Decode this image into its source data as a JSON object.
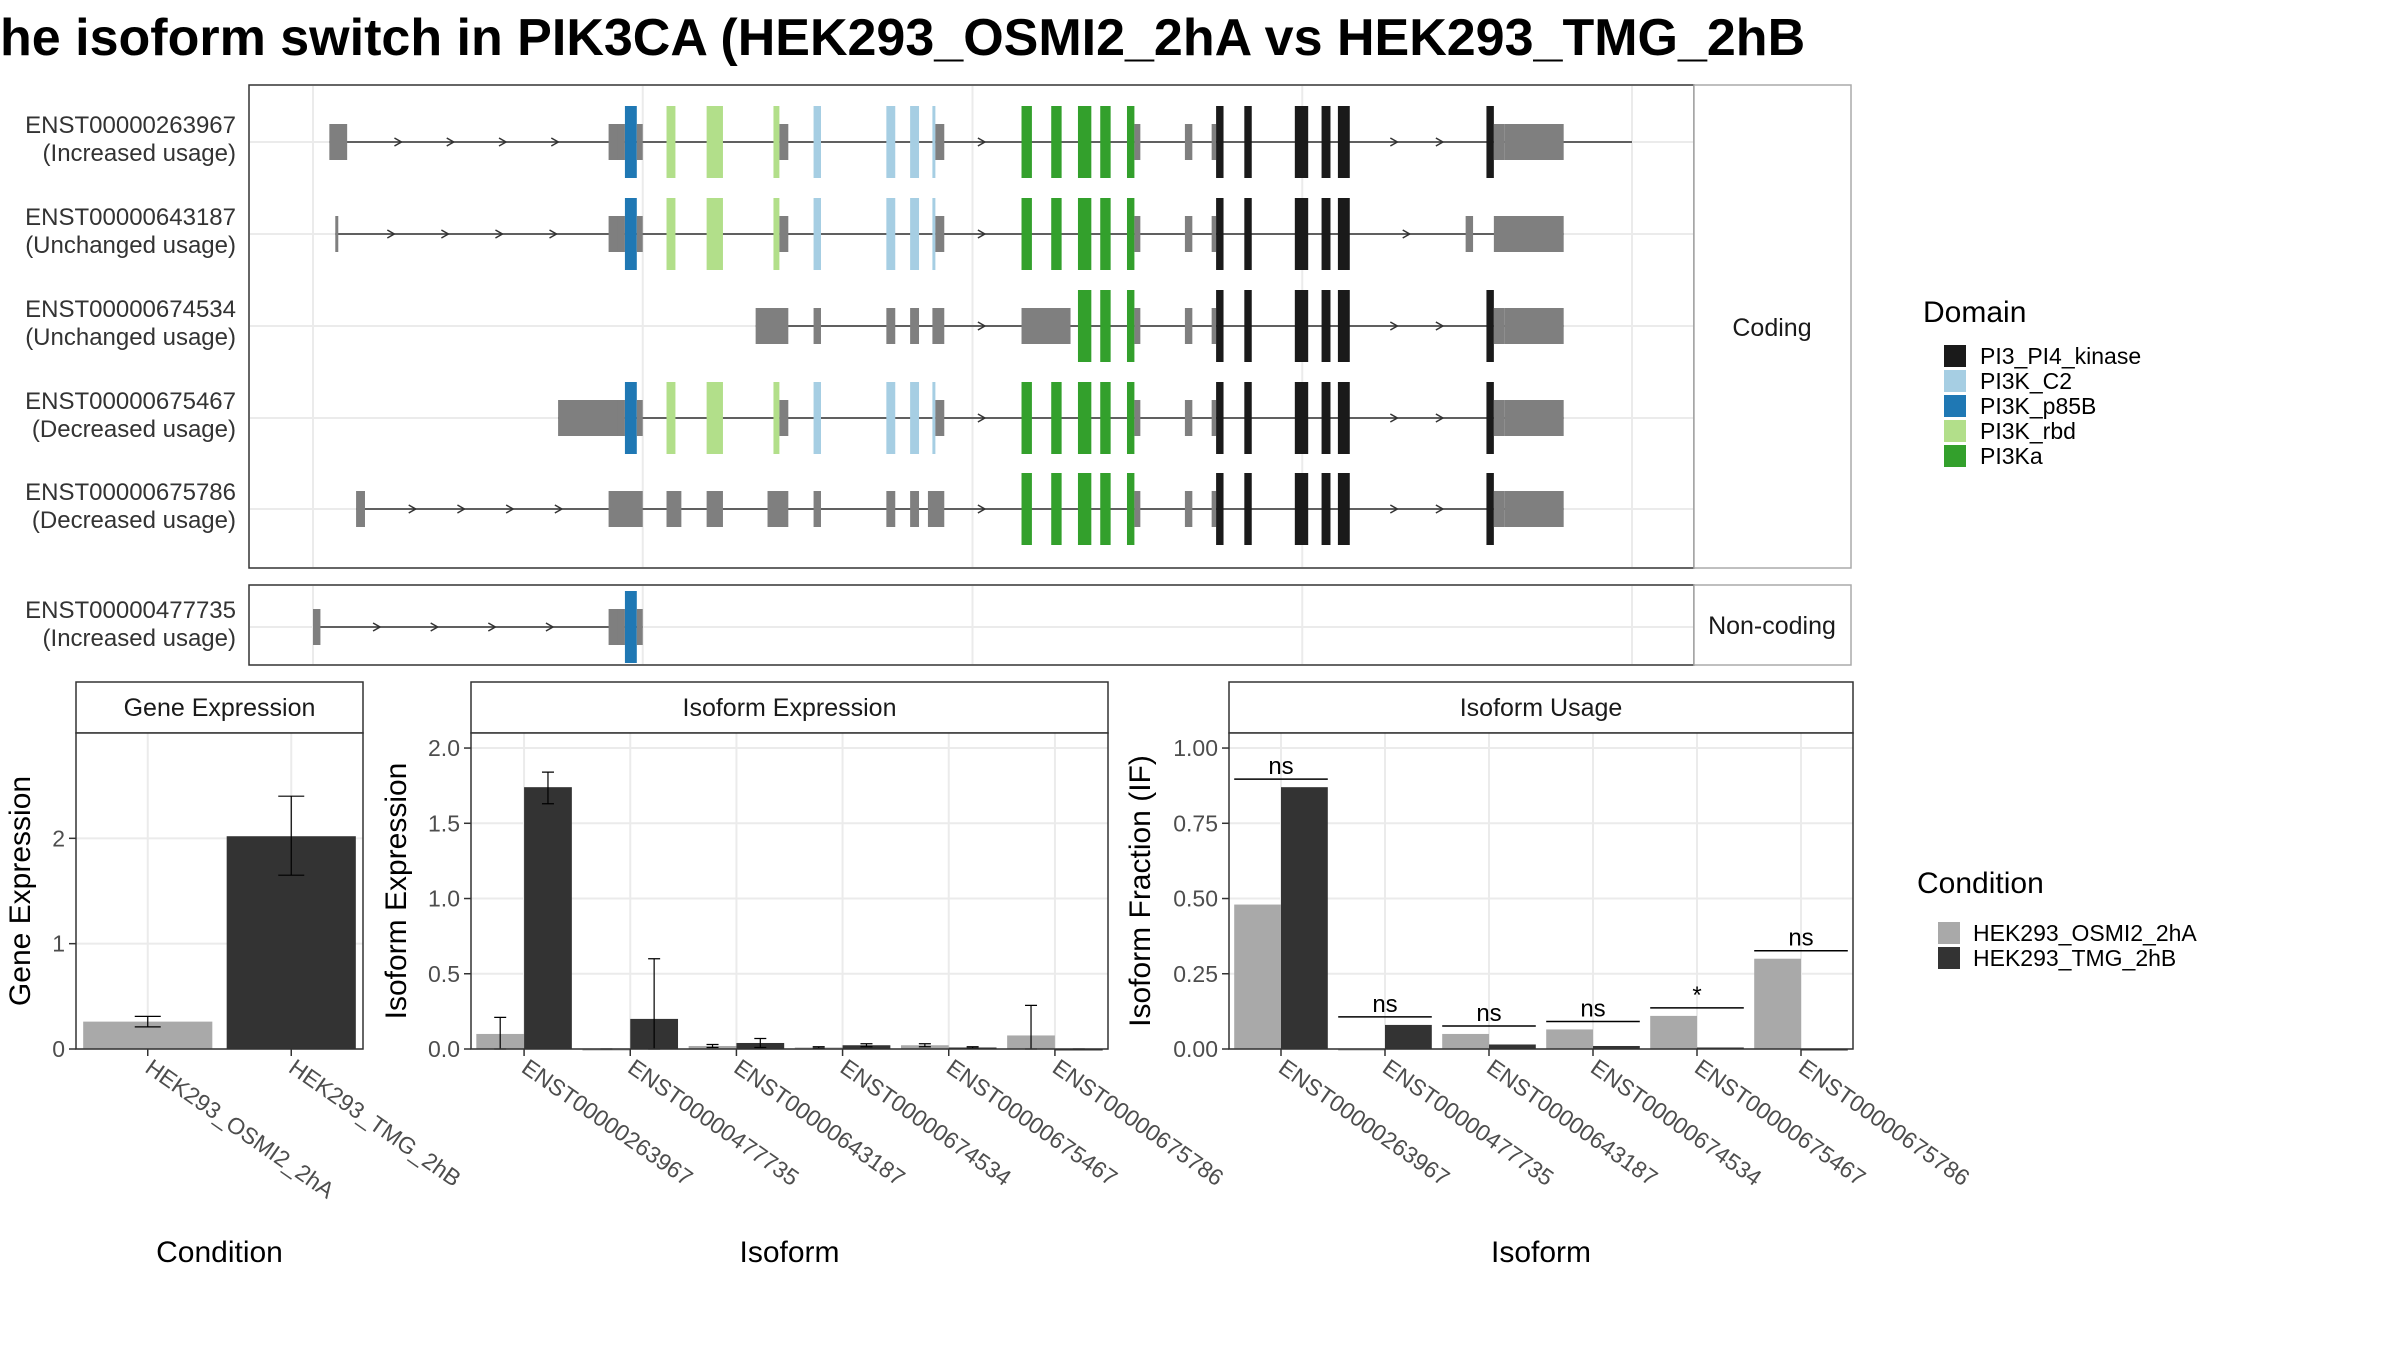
{
  "title": "he isoform switch in PIK3CA (HEK293_OSMI2_2hA vs HEK293_TMG_2hB",
  "colors": {
    "utr": "#7f7f7f",
    "intron": "#333333",
    "grid": "#ebebeb",
    "strip_border": "#aaaaaa",
    "cond_a": "#a9a9a9",
    "cond_b": "#333333",
    "PI3_PI4_kinase": "#1a1a1a",
    "PI3K_C2": "#a6cee3",
    "PI3K_p85B": "#1f78b4",
    "PI3K_rbd": "#b2df8a",
    "PI3Ka": "#33a02c"
  },
  "domain_legend": {
    "title": "Domain",
    "items": [
      {
        "label": "PI3_PI4_kinase",
        "color": "#1a1a1a"
      },
      {
        "label": "PI3K_C2",
        "color": "#a6cee3"
      },
      {
        "label": "PI3K_p85B",
        "color": "#1f78b4"
      },
      {
        "label": "PI3K_rbd",
        "color": "#b2df8a"
      },
      {
        "label": "PI3Ka",
        "color": "#33a02c"
      }
    ]
  },
  "condition_legend": {
    "title": "Condition",
    "items": [
      {
        "label": "HEK293_OSMI2_2hA",
        "color": "#a9a9a9"
      },
      {
        "label": "HEK293_TMG_2hB",
        "color": "#333333"
      }
    ]
  },
  "structure": {
    "coding_strip": "Coding",
    "noncoding_strip": "Non-coding",
    "coding_transcripts": [
      {
        "id": "ENST00000263967",
        "usage": "(Increased usage)",
        "span": [
          11,
          888
        ],
        "exons": [
          {
            "s": 11,
            "e": 23,
            "t": "utr"
          },
          {
            "s": 199,
            "e": 205,
            "t": "utr"
          },
          {
            "s": 205,
            "e": 210,
            "t": "utr"
          },
          {
            "s": 210,
            "e": 218,
            "t": "PI3K_p85B"
          },
          {
            "s": 218,
            "e": 222,
            "t": "utr"
          },
          {
            "s": 238,
            "e": 244,
            "t": "PI3K_rbd"
          },
          {
            "s": 265,
            "e": 276,
            "t": "PI3K_rbd"
          },
          {
            "s": 310,
            "e": 314,
            "t": "PI3K_rbd"
          },
          {
            "s": 314,
            "e": 320,
            "t": "utr"
          },
          {
            "s": 337,
            "e": 342,
            "t": "PI3K_C2"
          },
          {
            "s": 386,
            "e": 392,
            "t": "PI3K_C2"
          },
          {
            "s": 402,
            "e": 408,
            "t": "PI3K_C2"
          },
          {
            "s": 417,
            "e": 419,
            "t": "PI3K_C2"
          },
          {
            "s": 419,
            "e": 425,
            "t": "utr"
          },
          {
            "s": 477,
            "e": 484,
            "t": "PI3Ka"
          },
          {
            "s": 497,
            "e": 504,
            "t": "PI3Ka"
          },
          {
            "s": 515,
            "e": 524,
            "t": "PI3Ka"
          },
          {
            "s": 530,
            "e": 537,
            "t": "PI3Ka"
          },
          {
            "s": 548,
            "e": 553,
            "t": "PI3Ka"
          },
          {
            "s": 553,
            "e": 557,
            "t": "utr"
          },
          {
            "s": 587,
            "e": 592,
            "t": "utr"
          },
          {
            "s": 605,
            "e": 608,
            "t": "utr"
          },
          {
            "s": 608,
            "e": 613,
            "t": "PI3_PI4_kinase"
          },
          {
            "s": 627,
            "e": 632,
            "t": "PI3_PI4_kinase"
          },
          {
            "s": 661,
            "e": 670,
            "t": "PI3_PI4_kinase"
          },
          {
            "s": 679,
            "e": 685,
            "t": "PI3_PI4_kinase"
          },
          {
            "s": 690,
            "e": 698,
            "t": "PI3_PI4_kinase"
          },
          {
            "s": 790,
            "e": 795,
            "t": "PI3_PI4_kinase"
          },
          {
            "s": 795,
            "e": 802,
            "t": "utr"
          },
          {
            "s": 802,
            "e": 842,
            "t": "utr"
          }
        ]
      },
      {
        "id": "ENST00000643187",
        "usage": "(Unchanged usage)",
        "span": [
          15,
          842
        ],
        "exons": [
          {
            "s": 15,
            "e": 17,
            "t": "utr"
          },
          {
            "s": 199,
            "e": 205,
            "t": "utr"
          },
          {
            "s": 205,
            "e": 210,
            "t": "utr"
          },
          {
            "s": 210,
            "e": 218,
            "t": "PI3K_p85B"
          },
          {
            "s": 218,
            "e": 222,
            "t": "utr"
          },
          {
            "s": 238,
            "e": 244,
            "t": "PI3K_rbd"
          },
          {
            "s": 265,
            "e": 276,
            "t": "PI3K_rbd"
          },
          {
            "s": 310,
            "e": 314,
            "t": "PI3K_rbd"
          },
          {
            "s": 314,
            "e": 320,
            "t": "utr"
          },
          {
            "s": 337,
            "e": 342,
            "t": "PI3K_C2"
          },
          {
            "s": 386,
            "e": 392,
            "t": "PI3K_C2"
          },
          {
            "s": 402,
            "e": 408,
            "t": "PI3K_C2"
          },
          {
            "s": 417,
            "e": 419,
            "t": "PI3K_C2"
          },
          {
            "s": 419,
            "e": 425,
            "t": "utr"
          },
          {
            "s": 477,
            "e": 484,
            "t": "PI3Ka"
          },
          {
            "s": 497,
            "e": 504,
            "t": "PI3Ka"
          },
          {
            "s": 515,
            "e": 524,
            "t": "PI3Ka"
          },
          {
            "s": 530,
            "e": 537,
            "t": "PI3Ka"
          },
          {
            "s": 548,
            "e": 553,
            "t": "PI3Ka"
          },
          {
            "s": 553,
            "e": 557,
            "t": "utr"
          },
          {
            "s": 587,
            "e": 592,
            "t": "utr"
          },
          {
            "s": 605,
            "e": 608,
            "t": "utr"
          },
          {
            "s": 608,
            "e": 613,
            "t": "PI3_PI4_kinase"
          },
          {
            "s": 627,
            "e": 632,
            "t": "PI3_PI4_kinase"
          },
          {
            "s": 661,
            "e": 670,
            "t": "PI3_PI4_kinase"
          },
          {
            "s": 679,
            "e": 685,
            "t": "PI3_PI4_kinase"
          },
          {
            "s": 690,
            "e": 698,
            "t": "PI3_PI4_kinase"
          },
          {
            "s": 776,
            "e": 781,
            "t": "utr"
          },
          {
            "s": 795,
            "e": 842,
            "t": "utr"
          }
        ]
      },
      {
        "id": "ENST00000674534",
        "usage": "(Unchanged usage)",
        "span": [
          298,
          842
        ],
        "exons": [
          {
            "s": 298,
            "e": 320,
            "t": "utr"
          },
          {
            "s": 337,
            "e": 342,
            "t": "utr"
          },
          {
            "s": 386,
            "e": 392,
            "t": "utr"
          },
          {
            "s": 402,
            "e": 408,
            "t": "utr"
          },
          {
            "s": 417,
            "e": 425,
            "t": "utr"
          },
          {
            "s": 477,
            "e": 510,
            "t": "utr"
          },
          {
            "s": 515,
            "e": 524,
            "t": "PI3Ka"
          },
          {
            "s": 530,
            "e": 537,
            "t": "PI3Ka"
          },
          {
            "s": 548,
            "e": 553,
            "t": "PI3Ka"
          },
          {
            "s": 553,
            "e": 557,
            "t": "utr"
          },
          {
            "s": 587,
            "e": 592,
            "t": "utr"
          },
          {
            "s": 605,
            "e": 608,
            "t": "utr"
          },
          {
            "s": 608,
            "e": 613,
            "t": "PI3_PI4_kinase"
          },
          {
            "s": 627,
            "e": 632,
            "t": "PI3_PI4_kinase"
          },
          {
            "s": 661,
            "e": 670,
            "t": "PI3_PI4_kinase"
          },
          {
            "s": 679,
            "e": 685,
            "t": "PI3_PI4_kinase"
          },
          {
            "s": 690,
            "e": 698,
            "t": "PI3_PI4_kinase"
          },
          {
            "s": 790,
            "e": 795,
            "t": "PI3_PI4_kinase"
          },
          {
            "s": 795,
            "e": 802,
            "t": "utr"
          },
          {
            "s": 802,
            "e": 842,
            "t": "utr"
          }
        ]
      },
      {
        "id": "ENST00000675467",
        "usage": "(Decreased usage)",
        "span": [
          165,
          842
        ],
        "exons": [
          {
            "s": 165,
            "e": 205,
            "t": "utr"
          },
          {
            "s": 205,
            "e": 210,
            "t": "utr"
          },
          {
            "s": 210,
            "e": 218,
            "t": "PI3K_p85B"
          },
          {
            "s": 218,
            "e": 222,
            "t": "utr"
          },
          {
            "s": 238,
            "e": 244,
            "t": "PI3K_rbd"
          },
          {
            "s": 265,
            "e": 276,
            "t": "PI3K_rbd"
          },
          {
            "s": 310,
            "e": 314,
            "t": "PI3K_rbd"
          },
          {
            "s": 314,
            "e": 320,
            "t": "utr"
          },
          {
            "s": 337,
            "e": 342,
            "t": "PI3K_C2"
          },
          {
            "s": 386,
            "e": 392,
            "t": "PI3K_C2"
          },
          {
            "s": 402,
            "e": 408,
            "t": "PI3K_C2"
          },
          {
            "s": 417,
            "e": 419,
            "t": "PI3K_C2"
          },
          {
            "s": 419,
            "e": 425,
            "t": "utr"
          },
          {
            "s": 477,
            "e": 484,
            "t": "PI3Ka"
          },
          {
            "s": 497,
            "e": 504,
            "t": "PI3Ka"
          },
          {
            "s": 515,
            "e": 524,
            "t": "PI3Ka"
          },
          {
            "s": 530,
            "e": 537,
            "t": "PI3Ka"
          },
          {
            "s": 548,
            "e": 553,
            "t": "PI3Ka"
          },
          {
            "s": 553,
            "e": 557,
            "t": "utr"
          },
          {
            "s": 587,
            "e": 592,
            "t": "utr"
          },
          {
            "s": 605,
            "e": 608,
            "t": "utr"
          },
          {
            "s": 608,
            "e": 613,
            "t": "PI3_PI4_kinase"
          },
          {
            "s": 627,
            "e": 632,
            "t": "PI3_PI4_kinase"
          },
          {
            "s": 661,
            "e": 670,
            "t": "PI3_PI4_kinase"
          },
          {
            "s": 679,
            "e": 685,
            "t": "PI3_PI4_kinase"
          },
          {
            "s": 690,
            "e": 698,
            "t": "PI3_PI4_kinase"
          },
          {
            "s": 790,
            "e": 795,
            "t": "PI3_PI4_kinase"
          },
          {
            "s": 795,
            "e": 802,
            "t": "utr"
          },
          {
            "s": 802,
            "e": 842,
            "t": "utr"
          }
        ]
      },
      {
        "id": "ENST00000675786",
        "usage": "(Decreased usage)",
        "span": [
          29,
          842
        ],
        "exons": [
          {
            "s": 29,
            "e": 35,
            "t": "utr"
          },
          {
            "s": 199,
            "e": 222,
            "t": "utr"
          },
          {
            "s": 238,
            "e": 248,
            "t": "utr"
          },
          {
            "s": 265,
            "e": 276,
            "t": "utr"
          },
          {
            "s": 306,
            "e": 320,
            "t": "utr"
          },
          {
            "s": 337,
            "e": 342,
            "t": "utr"
          },
          {
            "s": 386,
            "e": 392,
            "t": "utr"
          },
          {
            "s": 402,
            "e": 408,
            "t": "utr"
          },
          {
            "s": 414,
            "e": 425,
            "t": "utr"
          },
          {
            "s": 477,
            "e": 484,
            "t": "PI3Ka"
          },
          {
            "s": 497,
            "e": 504,
            "t": "PI3Ka"
          },
          {
            "s": 515,
            "e": 524,
            "t": "PI3Ka"
          },
          {
            "s": 530,
            "e": 537,
            "t": "PI3Ka"
          },
          {
            "s": 548,
            "e": 553,
            "t": "PI3Ka"
          },
          {
            "s": 553,
            "e": 557,
            "t": "utr"
          },
          {
            "s": 587,
            "e": 592,
            "t": "utr"
          },
          {
            "s": 605,
            "e": 608,
            "t": "utr"
          },
          {
            "s": 608,
            "e": 613,
            "t": "PI3_PI4_kinase"
          },
          {
            "s": 627,
            "e": 632,
            "t": "PI3_PI4_kinase"
          },
          {
            "s": 661,
            "e": 670,
            "t": "PI3_PI4_kinase"
          },
          {
            "s": 679,
            "e": 685,
            "t": "PI3_PI4_kinase"
          },
          {
            "s": 690,
            "e": 698,
            "t": "PI3_PI4_kinase"
          },
          {
            "s": 790,
            "e": 795,
            "t": "PI3_PI4_kinase"
          },
          {
            "s": 795,
            "e": 802,
            "t": "utr"
          },
          {
            "s": 802,
            "e": 842,
            "t": "utr"
          }
        ]
      }
    ],
    "noncoding_transcripts": [
      {
        "id": "ENST00000477735",
        "usage": "(Increased usage)",
        "span": [
          0,
          222
        ],
        "exons": [
          {
            "s": 0,
            "e": 5,
            "t": "utr"
          },
          {
            "s": 199,
            "e": 205,
            "t": "utr"
          },
          {
            "s": 205,
            "e": 210,
            "t": "utr"
          },
          {
            "s": 210,
            "e": 218,
            "t": "PI3K_p85B"
          },
          {
            "s": 218,
            "e": 222,
            "t": "utr"
          }
        ]
      }
    ]
  },
  "chart_data": [
    {
      "type": "bar",
      "title": "Gene Expression",
      "xlabel": "Condition",
      "ylabel": "Gene Expression",
      "ylim": [
        0,
        3
      ],
      "yticks": [
        "0",
        "1",
        "2"
      ],
      "categories": [
        "HEK293_OSMI2_2hA",
        "HEK293_TMG_2hB"
      ],
      "values": [
        0.26,
        2.02
      ],
      "error_low": [
        0.21,
        1.65
      ],
      "error_high": [
        0.31,
        2.4
      ],
      "colors": [
        "#a9a9a9",
        "#333333"
      ]
    },
    {
      "type": "bar",
      "title": "Isoform Expression",
      "xlabel": "Isoform",
      "ylabel": "Isoform Expression",
      "ylim": [
        0,
        2.1
      ],
      "yticks": [
        "0.0",
        "0.5",
        "1.0",
        "1.5",
        "2.0"
      ],
      "categories": [
        "ENST00000263967",
        "ENST00000477735",
        "ENST00000643187",
        "ENST00000674534",
        "ENST00000675467",
        "ENST00000675786"
      ],
      "series": [
        {
          "name": "HEK293_OSMI2_2hA",
          "values": [
            0.1,
            0.0,
            0.02,
            0.01,
            0.025,
            0.09
          ],
          "error_low": [
            0.0,
            0.0,
            0.01,
            0.005,
            0.015,
            0.0
          ],
          "error_high": [
            0.21,
            0.0,
            0.03,
            0.015,
            0.035,
            0.29
          ]
        },
        {
          "name": "HEK293_TMG_2hB",
          "values": [
            1.74,
            0.2,
            0.04,
            0.025,
            0.01,
            0.0
          ],
          "error_low": [
            1.63,
            0.0,
            0.01,
            0.015,
            0.005,
            0.0
          ],
          "error_high": [
            1.84,
            0.6,
            0.07,
            0.035,
            0.015,
            0.0
          ]
        }
      ]
    },
    {
      "type": "bar",
      "title": "Isoform Usage",
      "xlabel": "Isoform",
      "ylabel": "Isoform Fraction (IF)",
      "ylim": [
        0,
        1.05
      ],
      "yticks": [
        "0.00",
        "0.25",
        "0.50",
        "0.75",
        "1.00"
      ],
      "categories": [
        "ENST00000263967",
        "ENST00000477735",
        "ENST00000643187",
        "ENST00000674534",
        "ENST00000675467",
        "ENST00000675786"
      ],
      "series": [
        {
          "name": "HEK293_OSMI2_2hA",
          "values": [
            0.48,
            0.0,
            0.05,
            0.065,
            0.11,
            0.3
          ]
        },
        {
          "name": "HEK293_TMG_2hB",
          "values": [
            0.87,
            0.08,
            0.015,
            0.01,
            0.005,
            0.0
          ]
        }
      ],
      "significance": [
        "ns",
        "ns",
        "ns",
        "ns",
        "*",
        "ns"
      ]
    }
  ]
}
